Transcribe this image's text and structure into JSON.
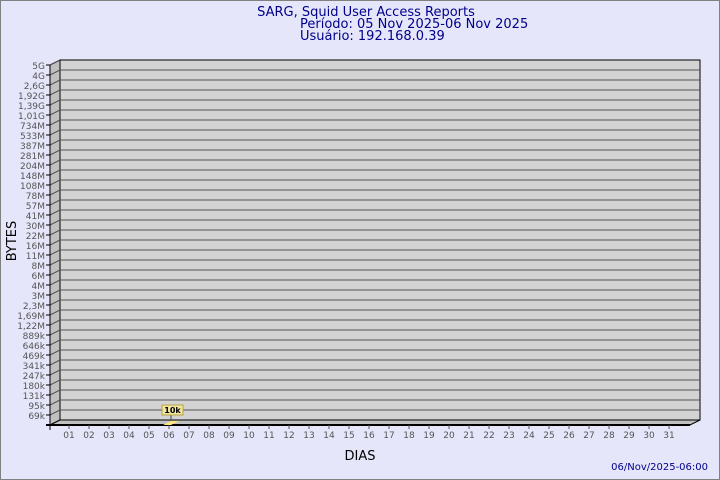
{
  "chart_data": {
    "type": "bar",
    "title": "SARG, Squid User Access Reports",
    "subtitle_period": "Período: 05 Nov 2025-06 Nov 2025",
    "subtitle_user": "Usuário: 192.168.0.39",
    "xlabel": "DIAS",
    "ylabel": "BYTES",
    "y_scale": "log",
    "y_ticks": [
      "5G",
      "4G",
      "2,6G",
      "1,92G",
      "1,39G",
      "1,01G",
      "734M",
      "533M",
      "387M",
      "281M",
      "204M",
      "148M",
      "108M",
      "78M",
      "57M",
      "41M",
      "30M",
      "22M",
      "16M",
      "11M",
      "8M",
      "6M",
      "4M",
      "3M",
      "2,3M",
      "1,69M",
      "1,22M",
      "889k",
      "646k",
      "469k",
      "341k",
      "247k",
      "180k",
      "131k",
      "95k",
      "69k"
    ],
    "categories": [
      "01",
      "02",
      "03",
      "04",
      "05",
      "06",
      "07",
      "08",
      "09",
      "10",
      "11",
      "12",
      "13",
      "14",
      "15",
      "16",
      "17",
      "18",
      "19",
      "20",
      "21",
      "22",
      "23",
      "24",
      "25",
      "26",
      "27",
      "28",
      "29",
      "30",
      "31"
    ],
    "bars": [
      {
        "category": "06",
        "value": 10000,
        "label": "10k"
      }
    ],
    "grid": true,
    "footer": "06/Nov/2025-06:00",
    "colors": {
      "background": "#e6e6fa",
      "plot": "#d3d3d3",
      "wall": "#c0c0c0",
      "bar": "#ffe680",
      "label_box": "#f0e8a0",
      "title": "#00008b"
    }
  }
}
